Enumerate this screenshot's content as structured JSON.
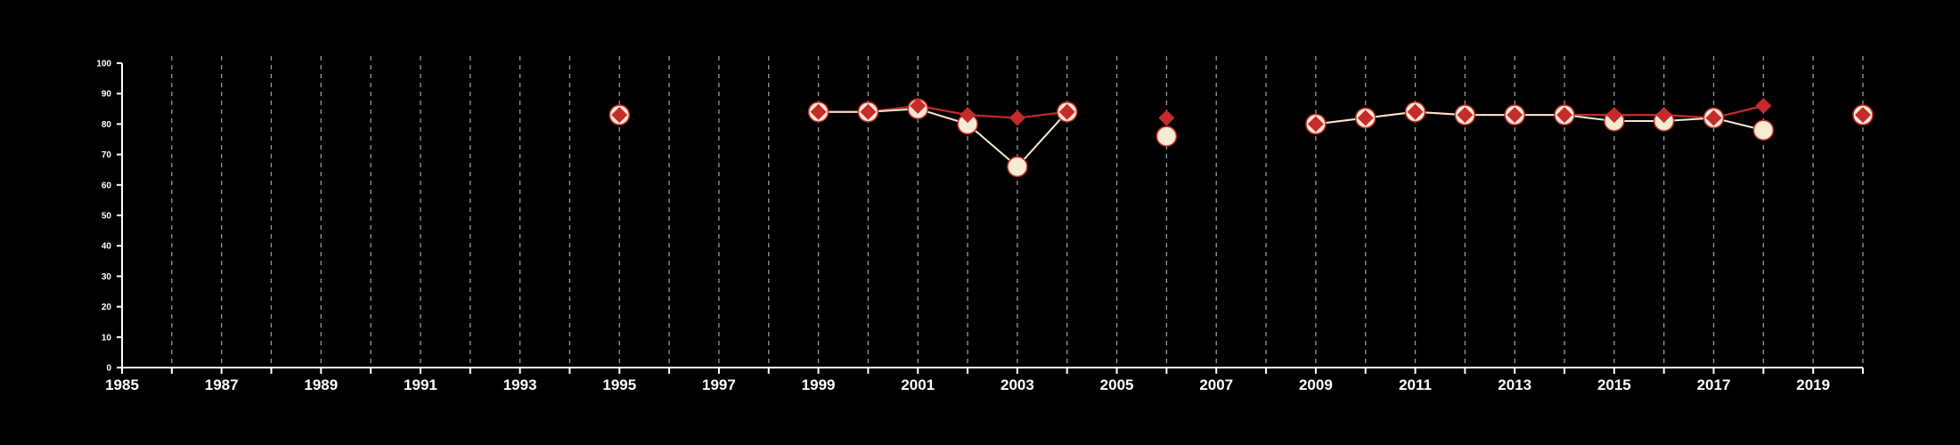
{
  "chart_data": {
    "type": "line",
    "title": "",
    "xlabel": "",
    "ylabel": "",
    "xlim": [
      1985,
      2020
    ],
    "ylim": [
      0,
      100
    ],
    "x_ticks": [
      1985,
      1987,
      1989,
      1991,
      1993,
      1995,
      1997,
      1999,
      2001,
      2003,
      2005,
      2007,
      2009,
      2011,
      2013,
      2015,
      2017,
      2019
    ],
    "y_ticks": [
      0,
      10,
      20,
      30,
      40,
      50,
      60,
      70,
      80,
      90,
      100
    ],
    "grid": "vertical dashed lines at each year",
    "background": "#000000",
    "series": [
      {
        "marker": "circle",
        "color": "#f5ead2",
        "outline": "#c62b2b",
        "points": [
          {
            "x": 1995,
            "y": 83
          },
          {
            "x": 1999,
            "y": 84
          },
          {
            "x": 2000,
            "y": 84
          },
          {
            "x": 2001,
            "y": 85
          },
          {
            "x": 2002,
            "y": 80
          },
          {
            "x": 2003,
            "y": 66
          },
          {
            "x": 2004,
            "y": 84
          },
          {
            "x": 2006,
            "y": 76
          },
          {
            "x": 2009,
            "y": 80
          },
          {
            "x": 2010,
            "y": 82
          },
          {
            "x": 2011,
            "y": 84
          },
          {
            "x": 2012,
            "y": 83
          },
          {
            "x": 2013,
            "y": 83
          },
          {
            "x": 2014,
            "y": 83
          },
          {
            "x": 2015,
            "y": 81
          },
          {
            "x": 2016,
            "y": 81
          },
          {
            "x": 2017,
            "y": 82
          },
          {
            "x": 2018,
            "y": 78
          },
          {
            "x": 2020,
            "y": 83
          }
        ]
      },
      {
        "marker": "diamond",
        "color": "#c62b2b",
        "points": [
          {
            "x": 1995,
            "y": 83
          },
          {
            "x": 1999,
            "y": 84
          },
          {
            "x": 2000,
            "y": 84
          },
          {
            "x": 2001,
            "y": 86
          },
          {
            "x": 2002,
            "y": 83
          },
          {
            "x": 2003,
            "y": 82
          },
          {
            "x": 2004,
            "y": 84
          },
          {
            "x": 2006,
            "y": 82
          },
          {
            "x": 2009,
            "y": 80
          },
          {
            "x": 2010,
            "y": 82
          },
          {
            "x": 2011,
            "y": 84
          },
          {
            "x": 2012,
            "y": 83
          },
          {
            "x": 2013,
            "y": 83
          },
          {
            "x": 2014,
            "y": 83
          },
          {
            "x": 2015,
            "y": 83
          },
          {
            "x": 2016,
            "y": 83
          },
          {
            "x": 2017,
            "y": 82
          },
          {
            "x": 2018,
            "y": 86
          },
          {
            "x": 2020,
            "y": 83
          }
        ]
      }
    ]
  }
}
